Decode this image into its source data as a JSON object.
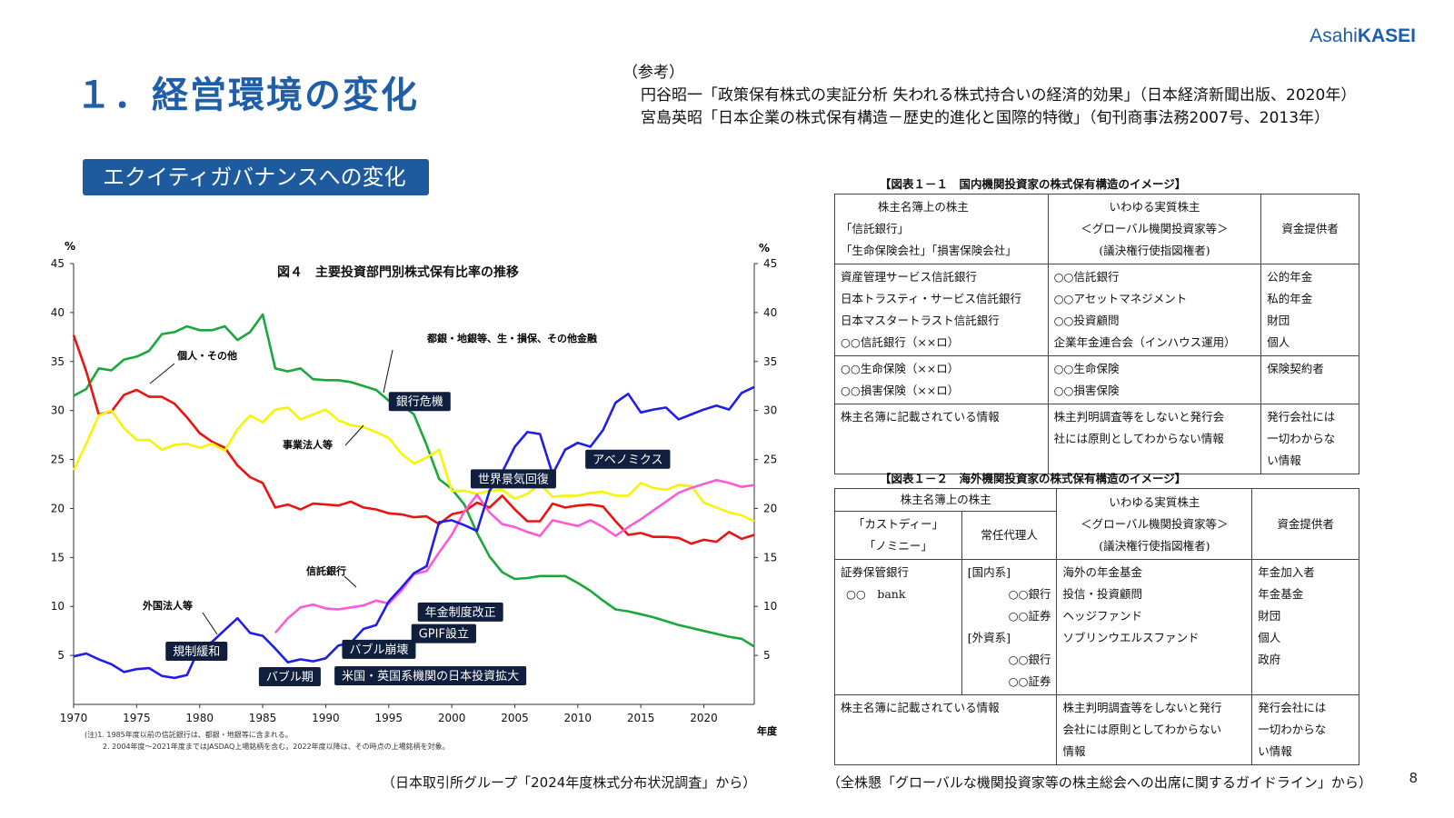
{
  "logo": {
    "part1": "Asahi",
    "part2": "KASEI"
  },
  "page_title": "１．経営環境の変化",
  "reference": {
    "heading": "（参考）",
    "lines": [
      "円谷昭一「政策保有株式の実証分析 失われる株式持合いの経済的効果」（日本経済新聞出版、2020年）",
      "宮島英昭「日本企業の株式保有構造－歴史的進化と国際的特徴」（旬刊商事法務2007号、2013年）"
    ]
  },
  "section_badge": "エクイティガバナンスへの変化",
  "chart_data": {
    "type": "line",
    "title": "図４　主要投資部門別株式保有比率の推移",
    "ylabel_left": "%",
    "ylabel_right": "%",
    "xlabel": "年度",
    "xlim": [
      1970,
      2024
    ],
    "ylim": [
      0,
      45
    ],
    "x_ticks": [
      1970,
      1975,
      1980,
      1985,
      1990,
      1995,
      2000,
      2005,
      2010,
      2015,
      2020
    ],
    "y_ticks": [
      5,
      10,
      15,
      20,
      25,
      30,
      35,
      40,
      45
    ],
    "series": [
      {
        "name": "都銀・地銀等、生・損保、その他金融",
        "color": "#1aa83a",
        "x": [
          1970,
          1971,
          1972,
          1973,
          1974,
          1975,
          1976,
          1977,
          1978,
          1979,
          1980,
          1981,
          1982,
          1983,
          1984,
          1985,
          1986,
          1987,
          1988,
          1989,
          1990,
          1991,
          1992,
          1993,
          1994,
          1995,
          1996,
          1997,
          1998,
          1999,
          2000,
          2001,
          2002,
          2003,
          2004,
          2005,
          2006,
          2007,
          2008,
          2009,
          2010,
          2011,
          2012,
          2013,
          2014,
          2015,
          2016,
          2017,
          2018,
          2019,
          2020,
          2021,
          2022,
          2023,
          2024
        ],
        "y": [
          31.5,
          32.2,
          34.3,
          34.1,
          35.2,
          35.5,
          36.1,
          37.8,
          38,
          38.6,
          38.2,
          38.2,
          38.6,
          37.2,
          38,
          39.8,
          34.3,
          34,
          34.3,
          33.2,
          33.1,
          33.1,
          32.9,
          32.5,
          32.1,
          31,
          30.6,
          29.6,
          26.5,
          23,
          22,
          20.4,
          17.5,
          15.1,
          13.5,
          12.8,
          12.9,
          13.1,
          13.1,
          13.1,
          12.4,
          11.6,
          10.6,
          9.7,
          9.5,
          9.2,
          8.9,
          8.5,
          8.1,
          7.8,
          7.5,
          7.2,
          6.9,
          6.7,
          5.9
        ]
      },
      {
        "name": "個人・その他",
        "color": "#e8150f",
        "x": [
          1970,
          1971,
          1972,
          1973,
          1974,
          1975,
          1976,
          1977,
          1978,
          1979,
          1980,
          1981,
          1982,
          1983,
          1984,
          1985,
          1986,
          1987,
          1988,
          1989,
          1990,
          1991,
          1992,
          1993,
          1994,
          1995,
          1996,
          1997,
          1998,
          1999,
          2000,
          2001,
          2002,
          2003,
          2004,
          2005,
          2006,
          2007,
          2008,
          2009,
          2010,
          2011,
          2012,
          2013,
          2014,
          2015,
          2016,
          2017,
          2018,
          2019,
          2020,
          2021,
          2022,
          2023,
          2024
        ],
        "y": [
          37.7,
          34,
          29.6,
          29.9,
          31.6,
          32.1,
          31.4,
          31.4,
          30.7,
          29.3,
          27.7,
          26.8,
          26.2,
          24.4,
          23.2,
          22.6,
          20.1,
          20.4,
          19.9,
          20.5,
          20.4,
          20.3,
          20.7,
          20.1,
          19.9,
          19.5,
          19.4,
          19.1,
          19.2,
          18.4,
          19.4,
          19.7,
          20.6,
          20.1,
          21.3,
          19.9,
          18.7,
          18.7,
          20.5,
          20.1,
          20.3,
          20.4,
          20.2,
          18.7,
          17.3,
          17.5,
          17.1,
          17.1,
          17,
          16.4,
          16.8,
          16.6,
          17.6,
          16.9,
          17.3
        ]
      },
      {
        "name": "事業法人等",
        "color": "#f5f50a",
        "x": [
          1970,
          1971,
          1972,
          1973,
          1974,
          1975,
          1976,
          1977,
          1978,
          1979,
          1980,
          1981,
          1982,
          1983,
          1984,
          1985,
          1986,
          1987,
          1988,
          1989,
          1990,
          1991,
          1992,
          1993,
          1994,
          1995,
          1996,
          1997,
          1998,
          1999,
          2000,
          2001,
          2002,
          2003,
          2004,
          2005,
          2006,
          2007,
          2008,
          2009,
          2010,
          2011,
          2012,
          2013,
          2014,
          2015,
          2016,
          2017,
          2018,
          2019,
          2020,
          2021,
          2022,
          2023,
          2024
        ],
        "y": [
          23.9,
          26.6,
          29.5,
          30,
          28.2,
          27,
          27,
          26,
          26.5,
          26.6,
          26.2,
          26.6,
          25.9,
          28.1,
          29.5,
          28.8,
          30.1,
          30.3,
          29.1,
          29.6,
          30.1,
          29,
          28.5,
          28.3,
          27.8,
          27.2,
          25.6,
          24.6,
          25.2,
          26,
          21.8,
          21.8,
          21.5,
          21.8,
          21.9,
          21,
          21.5,
          22.5,
          21.2,
          21.3,
          21.3,
          21.6,
          21.7,
          21.3,
          21.3,
          22.6,
          22.1,
          21.9,
          22.4,
          22.3,
          20.6,
          20.1,
          19.6,
          19.3,
          18.7
        ]
      },
      {
        "name": "信託銀行",
        "color": "#ff5ad5",
        "x": [
          1986,
          1987,
          1988,
          1989,
          1990,
          1991,
          1992,
          1993,
          1994,
          1995,
          1996,
          1997,
          1998,
          1999,
          2000,
          2001,
          2002,
          2003,
          2004,
          2005,
          2006,
          2007,
          2008,
          2009,
          2010,
          2011,
          2012,
          2013,
          2014,
          2015,
          2016,
          2017,
          2018,
          2019,
          2020,
          2021,
          2022,
          2023,
          2024
        ],
        "y": [
          7.3,
          8.8,
          9.9,
          10.2,
          9.8,
          9.7,
          9.9,
          10.1,
          10.6,
          10.3,
          11.6,
          13.3,
          13.6,
          15.5,
          17.3,
          19.7,
          21.4,
          19.6,
          18.4,
          18.1,
          17.6,
          17.2,
          18.8,
          18.5,
          18.2,
          18.8,
          18.1,
          17.2,
          18.1,
          18.9,
          19.8,
          20.7,
          21.6,
          22.1,
          22.5,
          22.9,
          22.6,
          22.2,
          22.4
        ]
      },
      {
        "name": "外国法人等",
        "color": "#1f1ee6",
        "x": [
          1970,
          1971,
          1972,
          1973,
          1974,
          1975,
          1976,
          1977,
          1978,
          1979,
          1980,
          1981,
          1982,
          1983,
          1984,
          1985,
          1986,
          1987,
          1988,
          1989,
          1990,
          1991,
          1992,
          1993,
          1994,
          1995,
          1996,
          1997,
          1998,
          1999,
          2000,
          2001,
          2002,
          2003,
          2004,
          2005,
          2006,
          2007,
          2008,
          2009,
          2010,
          2011,
          2012,
          2013,
          2014,
          2015,
          2016,
          2017,
          2018,
          2019,
          2020,
          2021,
          2022,
          2023,
          2024
        ],
        "y": [
          4.9,
          5.2,
          4.6,
          4.1,
          3.3,
          3.6,
          3.7,
          2.9,
          2.7,
          3,
          5.8,
          6.4,
          7.6,
          8.8,
          7.3,
          7,
          5.7,
          4.3,
          4.6,
          4.4,
          4.7,
          6,
          6.3,
          7.7,
          8.1,
          10.5,
          11.9,
          13.4,
          14.1,
          18.6,
          18.8,
          18.3,
          17.7,
          21.8,
          23.7,
          26.3,
          27.8,
          27.6,
          23.5,
          26,
          26.7,
          26.3,
          28,
          30.8,
          31.7,
          29.8,
          30.1,
          30.3,
          29.1,
          29.6,
          30.1,
          30.5,
          30.1,
          31.8,
          32.4
        ]
      }
    ],
    "line_labels": [
      "都銀・地銀等、生・損保、その他金融",
      "個人・その他",
      "事業法人等",
      "信託銀行",
      "外国法人等"
    ],
    "event_labels": [
      "銀行危機",
      "世界景気回復",
      "アベノミクス",
      "年金制度改正",
      "GPIF設立",
      "規制緩和",
      "バブル崩壊",
      "バブル期",
      "米国・英国系機関の日本投資拡大"
    ],
    "notes": [
      "(注)1. 1985年度以前の信託銀行は、都銀・地銀等に含まれる。",
      "2. 2004年度～2021年度まではJASDAQ上場銘柄を含む。2022年度以降は、その時点の上場銘柄を対象。"
    ]
  },
  "table1": {
    "caption": "【図表１－１　国内機関投資家の株式保有構造のイメージ】",
    "header": {
      "col1": [
        "株主名簿上の株主",
        "「信託銀行」",
        "「生命保険会社」「損害保険会社」"
      ],
      "col2": [
        "いわゆる実質株主",
        "＜グローバル機関投資家等＞",
        "(議決権行使指図権者)"
      ],
      "col3": "資金提供者"
    },
    "rows": [
      {
        "c1": [
          "資産管理サービス信託銀行",
          "日本トラスティ・サービス信託銀行",
          "日本マスタートラスト信託銀行",
          "○○信託銀行（××ロ）"
        ],
        "c2": [
          "○○信託銀行",
          "○○アセットマネジメント",
          "○○投資顧問",
          "企業年金連合会（インハウス運用）"
        ],
        "c3": [
          "公的年金",
          "私的年金",
          "財団",
          "個人"
        ]
      },
      {
        "c1": [
          "○○生命保険（××ロ）",
          "○○損害保険（××ロ）"
        ],
        "c2": [
          "○○生命保険",
          "○○損害保険"
        ],
        "c3": [
          "保険契約者"
        ]
      },
      {
        "c1": [
          "株主名簿に記載されている情報"
        ],
        "c2": [
          "株主判明調査等をしないと発行会",
          "社には原則としてわからない情報"
        ],
        "c3": [
          "発行会社には",
          "一切わからな",
          "い情報"
        ]
      }
    ]
  },
  "table2": {
    "caption": "【図表１－２　海外機関投資家の株式保有構造のイメージ】",
    "header": {
      "col1_top": "株主名簿上の株主",
      "col1a": [
        "「カストディー」",
        "「ノミニー」"
      ],
      "col1b": "常任代理人",
      "col2": [
        "いわゆる実質株主",
        "＜グローバル機関投資家等＞",
        "(議決権行使指図権者)"
      ],
      "col3": "資金提供者"
    },
    "rows": [
      {
        "c1a": [
          "証券保管銀行",
          "○○　bank"
        ],
        "c1b": [
          "[国内系]",
          "○○銀行",
          "○○証券",
          "[外資系]",
          "○○銀行",
          "○○証券"
        ],
        "c2": [
          "海外の年金基金",
          "投信・投資顧問",
          "ヘッジファンド",
          "ソブリンウエルスファンド"
        ],
        "c3": [
          "年金加入者",
          "年金基金",
          "財団",
          "個人",
          "政府"
        ]
      },
      {
        "c1": [
          "株主名簿に記載されている情報"
        ],
        "c2": [
          "株主判明調査等をしないと発行",
          "会社には原則としてわからない",
          "情報"
        ],
        "c3": [
          "発行会社には",
          "一切わからな",
          "い情報"
        ]
      }
    ]
  },
  "source_left": "（日本取引所グループ「2024年度株式分布状況調査」から）",
  "source_right": "（全株懇「グローバルな機関投資家等の株主総会への出席に関するガイドライン」から）",
  "page_number": "8"
}
